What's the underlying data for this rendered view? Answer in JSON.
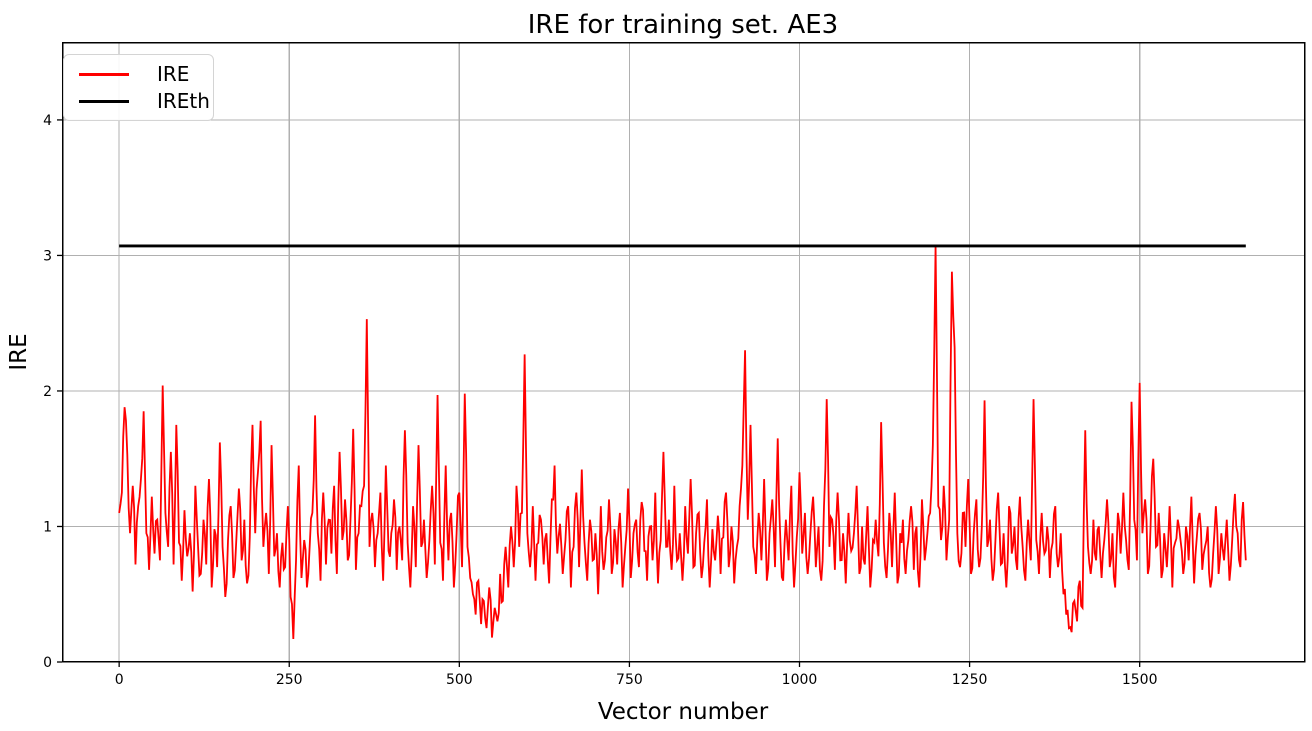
{
  "title": "IRE for training set. AE3",
  "axes": {
    "xlabel": "Vector number",
    "ylabel": "IRE"
  },
  "legend": {
    "position": "upper left",
    "entries": [
      {
        "label": "IRE",
        "color": "#ff0000"
      },
      {
        "label": "IREth",
        "color": "#000000"
      }
    ]
  },
  "colors": {
    "ire": "#ff0000",
    "ireth": "#000000",
    "grid": "#b0b0b0",
    "spine": "#000000",
    "background": "#ffffff"
  },
  "chart_data": {
    "type": "line",
    "title": "IRE for training set. AE3",
    "xlabel": "Vector number",
    "ylabel": "IRE",
    "xlim": [
      -84,
      1743
    ],
    "ylim": [
      0,
      4.575
    ],
    "xticks": [
      0,
      250,
      500,
      750,
      1000,
      1250,
      1500
    ],
    "yticks": [
      0,
      1,
      2,
      3,
      4
    ],
    "grid": true,
    "legend_position": "upper left",
    "threshold_value": 3.07,
    "notable_points": [
      {
        "x": 8,
        "y": 1.88
      },
      {
        "x": 64,
        "y": 2.04
      },
      {
        "x": 256,
        "y": 0.17
      },
      {
        "x": 364,
        "y": 2.53
      },
      {
        "x": 596,
        "y": 2.27
      },
      {
        "x": 920,
        "y": 2.3
      },
      {
        "x": 1200,
        "y": 3.07
      },
      {
        "x": 1224,
        "y": 2.88
      },
      {
        "x": 1400,
        "y": 0.22
      },
      {
        "x": 1500,
        "y": 2.06
      }
    ],
    "series": [
      {
        "name": "IRE",
        "color": "#ff0000",
        "kind": "noisy-line",
        "x_start": 0,
        "x_step": 4,
        "values": [
          1.1,
          1.25,
          1.88,
          1.53,
          0.95,
          1.3,
          0.72,
          1.15,
          1.35,
          1.85,
          0.95,
          0.68,
          1.22,
          0.8,
          1.05,
          0.75,
          2.04,
          1.1,
          0.85,
          1.55,
          0.72,
          1.75,
          0.88,
          0.6,
          1.12,
          0.78,
          0.95,
          0.52,
          1.3,
          0.85,
          0.65,
          1.05,
          0.72,
          1.35,
          0.55,
          0.98,
          0.7,
          1.62,
          0.85,
          0.48,
          0.9,
          1.15,
          0.62,
          0.88,
          1.28,
          0.75,
          1.05,
          0.58,
          0.92,
          1.75,
          0.95,
          1.4,
          1.78,
          0.85,
          1.1,
          0.65,
          1.6,
          0.78,
          0.95,
          0.55,
          0.88,
          0.7,
          1.15,
          0.48,
          0.17,
          0.75,
          1.45,
          0.62,
          0.9,
          0.55,
          0.85,
          1.1,
          1.82,
          0.95,
          0.6,
          1.25,
          0.72,
          1.05,
          0.8,
          1.3,
          0.65,
          1.55,
          0.9,
          1.2,
          0.75,
          1.05,
          1.72,
          0.68,
          0.95,
          1.15,
          1.3,
          2.53,
          0.85,
          1.1,
          0.7,
          0.95,
          1.25,
          0.6,
          1.45,
          0.82,
          0.95,
          1.2,
          0.68,
          1.0,
          0.75,
          1.71,
          0.88,
          0.55,
          1.15,
          0.7,
          1.6,
          0.85,
          1.05,
          0.62,
          0.9,
          1.3,
          0.72,
          1.97,
          0.88,
          0.6,
          1.45,
          0.75,
          1.1,
          0.55,
          0.95,
          1.25,
          0.7,
          1.98,
          0.85,
          0.62,
          0.5,
          0.35,
          0.6,
          0.28,
          0.45,
          0.25,
          0.55,
          0.18,
          0.4,
          0.3,
          0.65,
          0.45,
          0.85,
          0.55,
          1.0,
          0.7,
          1.3,
          0.85,
          1.1,
          2.27,
          0.95,
          0.7,
          1.15,
          0.6,
          0.88,
          1.05,
          0.72,
          0.95,
          0.58,
          1.2,
          1.45,
          0.8,
          1.02,
          0.65,
          0.9,
          1.15,
          0.55,
          0.85,
          1.25,
          0.7,
          1.42,
          0.88,
          0.6,
          1.05,
          0.75,
          0.95,
          0.5,
          1.15,
          0.68,
          0.92,
          1.2,
          0.65,
          0.98,
          0.72,
          1.1,
          0.55,
          0.85,
          1.28,
          0.62,
          0.95,
          1.05,
          0.7,
          1.18,
          0.82,
          0.6,
          1.0,
          0.75,
          1.25,
          0.58,
          0.9,
          1.55,
          0.85,
          1.05,
          0.68,
          1.3,
          0.75,
          0.95,
          0.6,
          1.15,
          0.8,
          1.35,
          0.7,
          0.95,
          1.1,
          0.62,
          0.88,
          1.2,
          0.55,
          0.98,
          0.75,
          1.08,
          0.65,
          0.92,
          1.25,
          0.7,
          1.0,
          0.58,
          0.85,
          1.15,
          1.45,
          2.3,
          1.05,
          1.75,
          0.85,
          0.65,
          1.1,
          0.75,
          1.35,
          0.6,
          0.95,
          1.2,
          0.7,
          1.65,
          0.88,
          0.6,
          1.05,
          0.75,
          1.3,
          0.55,
          0.92,
          1.4,
          0.8,
          1.1,
          0.65,
          0.95,
          1.22,
          0.7,
          1.0,
          0.6,
          1.15,
          1.94,
          0.85,
          1.05,
          0.68,
          1.25,
          0.75,
          0.95,
          0.58,
          1.1,
          0.82,
          0.95,
          1.3,
          0.65,
          1.0,
          0.72,
          1.15,
          0.55,
          0.9,
          1.05,
          0.78,
          1.77,
          0.88,
          0.62,
          1.1,
          0.7,
          1.25,
          0.58,
          0.95,
          1.05,
          0.65,
          0.9,
          1.15,
          0.68,
          1.0,
          0.55,
          1.2,
          0.75,
          0.95,
          1.1,
          1.6,
          3.07,
          1.15,
          0.9,
          1.3,
          0.75,
          1.05,
          2.88,
          2.32,
          0.95,
          0.7,
          1.1,
          0.85,
          1.35,
          0.65,
          0.95,
          1.2,
          0.7,
          1.0,
          1.93,
          0.85,
          1.05,
          0.6,
          0.9,
          1.25,
          0.72,
          0.95,
          0.55,
          1.15,
          0.8,
          1.0,
          0.68,
          1.22,
          0.85,
          0.6,
          1.05,
          0.75,
          1.94,
          0.9,
          0.65,
          1.1,
          0.8,
          1.0,
          0.62,
          0.88,
          1.15,
          0.7,
          0.95,
          0.5,
          0.35,
          0.25,
          0.22,
          0.45,
          0.3,
          0.6,
          0.4,
          1.71,
          0.85,
          0.65,
          1.05,
          0.75,
          1.0,
          0.62,
          0.9,
          1.2,
          0.7,
          0.95,
          0.55,
          1.1,
          0.8,
          1.25,
          0.9,
          0.68,
          1.92,
          1.05,
          0.75,
          2.06,
          0.95,
          1.2,
          0.65,
          1.0,
          1.5,
          0.85,
          1.1,
          0.62,
          0.95,
          0.7,
          1.15,
          0.55,
          0.88,
          1.05,
          0.9,
          0.65,
          1.0,
          0.75,
          1.22,
          0.58,
          0.92,
          1.1,
          0.68,
          0.85,
          1.0,
          0.55,
          0.8,
          1.15,
          0.65,
          0.95,
          0.75,
          1.05,
          0.6,
          0.9,
          1.24,
          0.95,
          0.7,
          1.18,
          0.75
        ]
      },
      {
        "name": "IREth",
        "color": "#000000",
        "kind": "hline",
        "y": 3.07,
        "x_range": [
          0,
          1656
        ]
      }
    ]
  },
  "render_hints": {
    "upsample": 2,
    "jitter_amp": 0.13,
    "seed": 20177,
    "min_value": 0.14
  }
}
